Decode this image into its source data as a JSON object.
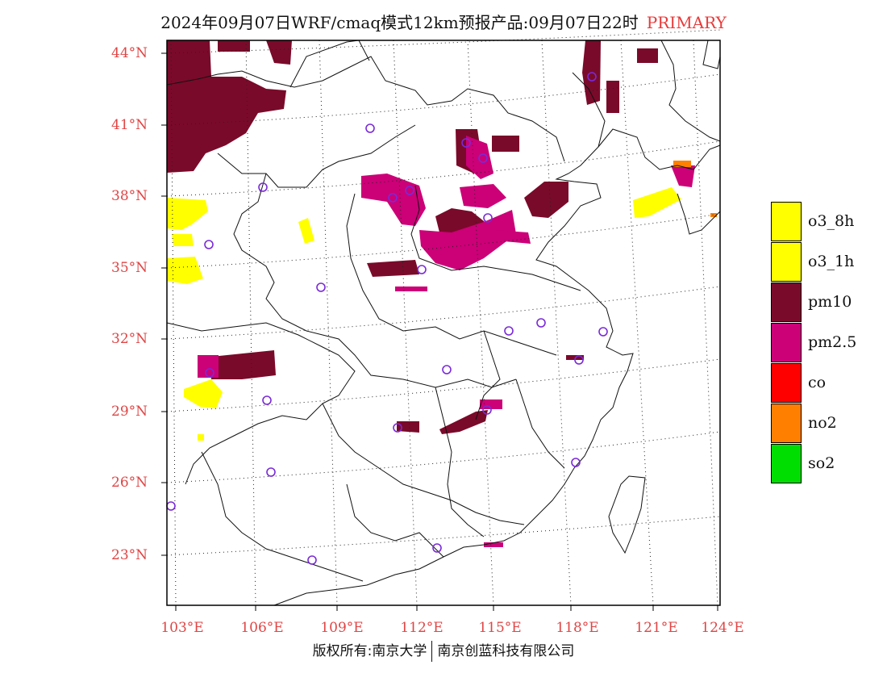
{
  "title": {
    "main": "2024年09月07日WRF/cmaq模式12km预报产品:09月07日22时",
    "tag": "PRIMARY"
  },
  "lat_labels": [
    "44°N",
    "41°N",
    "38°N",
    "35°N",
    "32°N",
    "29°N",
    "26°N",
    "23°N"
  ],
  "lon_labels": [
    "103°E",
    "106°E",
    "109°E",
    "112°E",
    "115°E",
    "118°E",
    "121°E",
    "124°E"
  ],
  "legend": [
    {
      "label": "o3_8h",
      "color": "#ffff00"
    },
    {
      "label": "o3_1h",
      "color": "#ffff00"
    },
    {
      "label": "pm10",
      "color": "#7a0a2a"
    },
    {
      "label": "pm2.5",
      "color": "#cc0077"
    },
    {
      "label": "co",
      "color": "#ff0000"
    },
    {
      "label": "no2",
      "color": "#ff7f00"
    },
    {
      "label": "so2",
      "color": "#00dd00"
    }
  ],
  "footer": {
    "left": "版权所有:南京大学",
    "right": "南京创蓝科技有限公司"
  },
  "colors": {
    "axis_label": "#e04545",
    "station_marker": "#7a2ad8"
  }
}
